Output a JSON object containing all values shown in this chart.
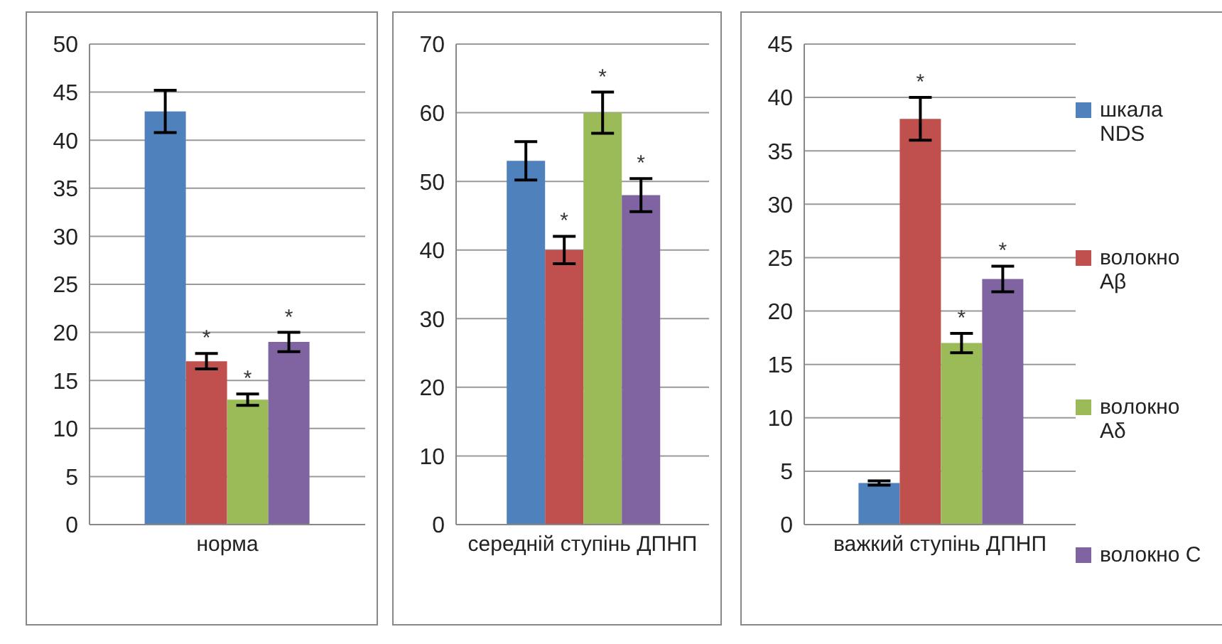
{
  "chart_data": [
    {
      "type": "bar",
      "categories": [
        "норма"
      ],
      "ylim": [
        0,
        50
      ],
      "yticks": [
        0,
        5,
        10,
        15,
        20,
        25,
        30,
        35,
        40,
        45,
        50
      ],
      "grid": "y",
      "series": [
        {
          "color": "#4f81bd",
          "values": [
            43
          ],
          "errors": [
            2.2
          ],
          "value_labels": [
            null
          ]
        },
        {
          "color": "#c0504d",
          "values": [
            17
          ],
          "errors": [
            0.8
          ],
          "value_labels": [
            "*"
          ]
        },
        {
          "color": "#9bbb59",
          "values": [
            13
          ],
          "errors": [
            0.6
          ],
          "value_labels": [
            "*"
          ]
        },
        {
          "color": "#8064a2",
          "values": [
            19
          ],
          "errors": [
            1
          ],
          "value_labels": [
            "*"
          ]
        }
      ]
    },
    {
      "type": "bar",
      "categories": [
        "середній ступінь ДПНП"
      ],
      "ylim": [
        0,
        70
      ],
      "yticks": [
        0,
        10,
        20,
        30,
        40,
        50,
        60,
        70
      ],
      "grid": "y",
      "series": [
        {
          "color": "#4f81bd",
          "values": [
            53
          ],
          "errors": [
            2.8
          ],
          "value_labels": [
            null
          ]
        },
        {
          "color": "#c0504d",
          "values": [
            40
          ],
          "errors": [
            2
          ],
          "value_labels": [
            "*"
          ]
        },
        {
          "color": "#9bbb59",
          "values": [
            60
          ],
          "errors": [
            3
          ],
          "value_labels": [
            "*"
          ]
        },
        {
          "color": "#8064a2",
          "values": [
            48
          ],
          "errors": [
            2.4
          ],
          "value_labels": [
            "*"
          ]
        }
      ]
    },
    {
      "type": "bar",
      "categories": [
        "важкий ступінь ДПНП"
      ],
      "ylim": [
        0,
        45
      ],
      "yticks": [
        0,
        5,
        10,
        15,
        20,
        25,
        30,
        35,
        40,
        45
      ],
      "grid": "y",
      "legend": "right",
      "series": [
        {
          "name": "шкала NDS",
          "color": "#4f81bd",
          "values": [
            3.9
          ],
          "errors": [
            0.2
          ],
          "value_labels": [
            null
          ]
        },
        {
          "name": "волокно Aβ",
          "color": "#c0504d",
          "values": [
            38
          ],
          "errors": [
            2
          ],
          "value_labels": [
            "*"
          ]
        },
        {
          "name": "волокно Aδ",
          "color": "#9bbb59",
          "values": [
            17
          ],
          "errors": [
            0.9
          ],
          "value_labels": [
            "*"
          ]
        },
        {
          "name": "волокно C",
          "color": "#8064a2",
          "values": [
            23
          ],
          "errors": [
            1.2
          ],
          "value_labels": [
            "*"
          ]
        }
      ]
    }
  ]
}
